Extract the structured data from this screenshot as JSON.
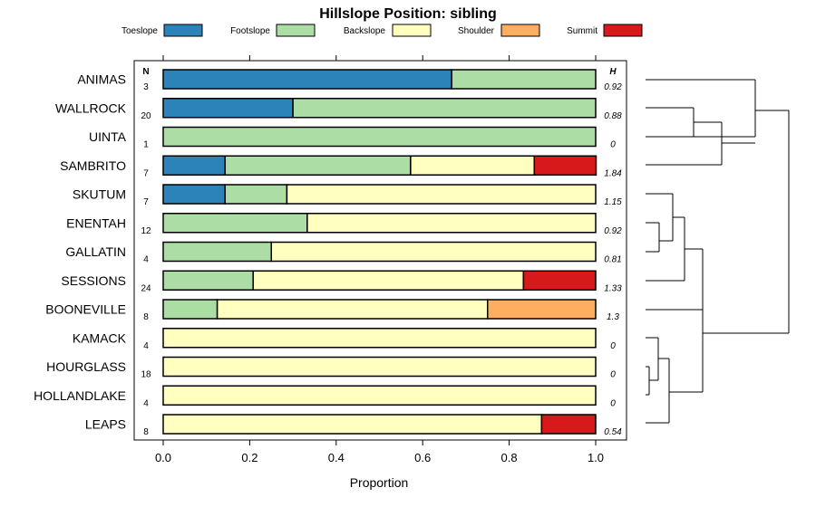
{
  "chart_data": {
    "type": "bar",
    "title": "Hillslope Position: sibling",
    "xlabel": "Proportion",
    "ylabel": "",
    "xlim": [
      0,
      1
    ],
    "x_ticks": [
      "0.0",
      "0.2",
      "0.4",
      "0.6",
      "0.8",
      "1.0"
    ],
    "x_tick_values": [
      0,
      0.2,
      0.4,
      0.6,
      0.8,
      1.0
    ],
    "n_header": "N",
    "h_header": "H",
    "legend_position": "top",
    "series": [
      {
        "name": "Toeslope",
        "color": "#2b83ba"
      },
      {
        "name": "Footslope",
        "color": "#abdda4"
      },
      {
        "name": "Backslope",
        "color": "#ffffbf"
      },
      {
        "name": "Shoulder",
        "color": "#fdae61"
      },
      {
        "name": "Summit",
        "color": "#d7191c"
      }
    ],
    "categories": [
      "ANIMAS",
      "WALLROCK",
      "UINTA",
      "SAMBRITO",
      "SKUTUM",
      "ENENTAH",
      "GALLATIN",
      "SESSIONS",
      "BOONEVILLE",
      "KAMACK",
      "HOURGLASS",
      "HOLLANDLAKE",
      "LEAPS"
    ],
    "n": [
      "3",
      "20",
      "1",
      "7",
      "7",
      "12",
      "4",
      "24",
      "8",
      "4",
      "18",
      "4",
      "8"
    ],
    "h": [
      "0.92",
      "0.88",
      "0",
      "1.84",
      "1.15",
      "0.92",
      "0.81",
      "1.33",
      "1.3",
      "0",
      "0",
      "0",
      "0.54"
    ],
    "proportions": [
      [
        0.667,
        0.333,
        0,
        0,
        0
      ],
      [
        0.3,
        0.7,
        0,
        0,
        0
      ],
      [
        0,
        1.0,
        0,
        0,
        0
      ],
      [
        0.143,
        0.429,
        0.286,
        0,
        0.143
      ],
      [
        0.143,
        0.143,
        0.714,
        0,
        0
      ],
      [
        0,
        0.333,
        0.667,
        0,
        0
      ],
      [
        0,
        0.25,
        0.75,
        0,
        0
      ],
      [
        0,
        0.208,
        0.625,
        0,
        0.167
      ],
      [
        0,
        0.125,
        0.625,
        0.25,
        0
      ],
      [
        0,
        0,
        1.0,
        0,
        0
      ],
      [
        0,
        0,
        1.0,
        0,
        0
      ],
      [
        0,
        0,
        1.0,
        0,
        0
      ],
      [
        0,
        0,
        0.875,
        0,
        0.125
      ]
    ]
  }
}
